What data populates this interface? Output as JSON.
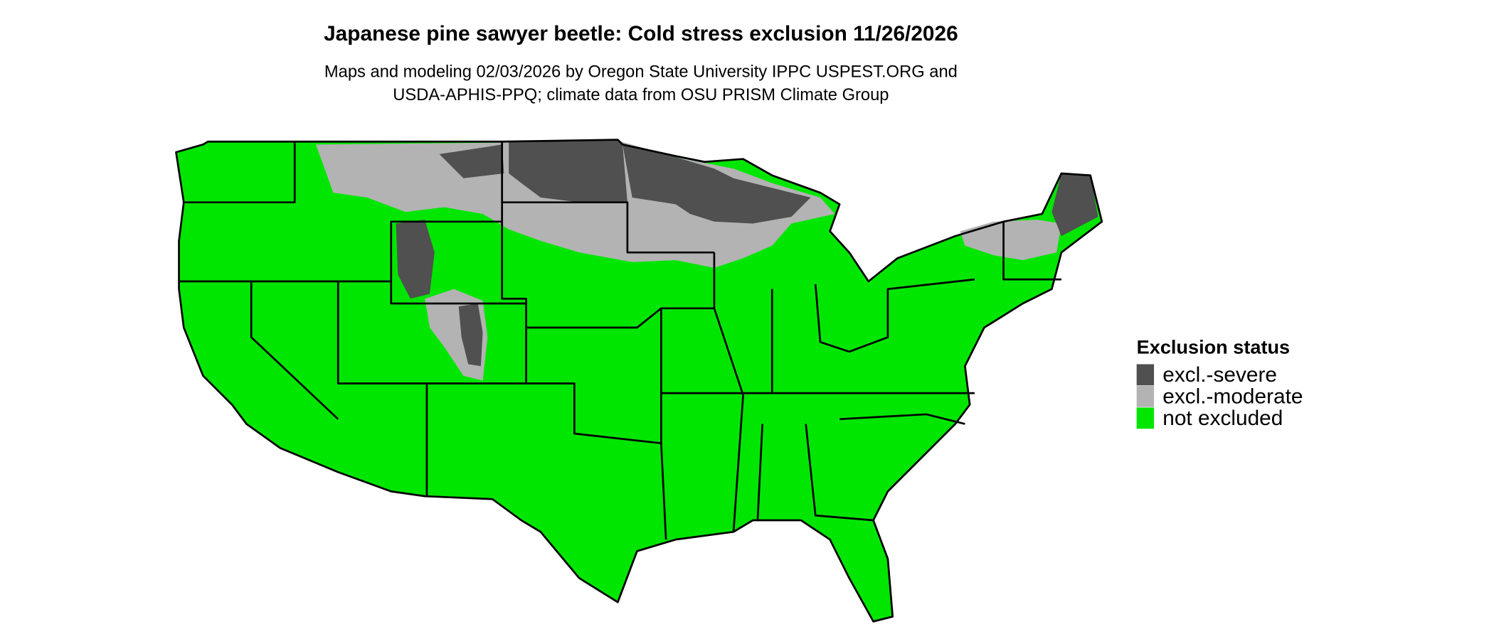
{
  "title": "Japanese pine sawyer beetle: Cold stress exclusion 11/26/2026",
  "subtitle": [
    "Maps and modeling 02/03/2026 by Oregon State University IPPC USPEST.ORG and",
    "USDA-APHIS-PPQ; climate data from OSU PRISM Climate Group"
  ],
  "legend": {
    "title": "Exclusion status",
    "items": [
      {
        "label": "excl.-severe",
        "color": "#505050"
      },
      {
        "label": "excl.-moderate",
        "color": "#b3b3b3"
      },
      {
        "label": "not excluded",
        "color": "#00e600"
      }
    ]
  }
}
